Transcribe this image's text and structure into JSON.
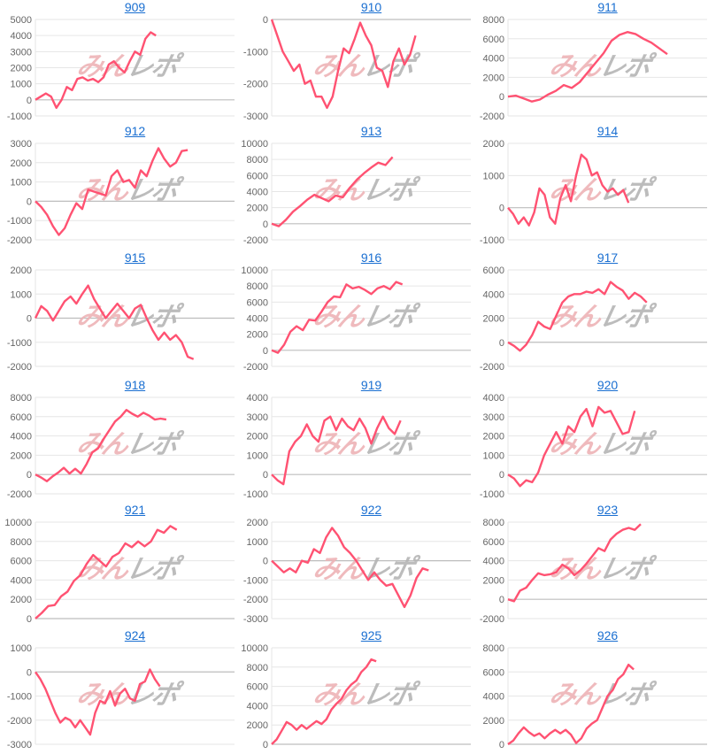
{
  "watermark": {
    "part1": "みん",
    "part2": "レポ"
  },
  "colors": {
    "line": "#ff5272",
    "grid": "#e6e6e6",
    "zero": "#bdbdbd",
    "tick_text": "#666666",
    "title": "#1a6fd1"
  },
  "chart_data": [
    {
      "type": "line",
      "title": "909",
      "ylim": [
        -1000,
        5000
      ],
      "ystep": 1000,
      "xlim": [
        0,
        38
      ],
      "grid": true,
      "values": [
        0,
        200,
        400,
        200,
        -500,
        0,
        800,
        600,
        1300,
        1400,
        1200,
        1300,
        1100,
        1400,
        2200,
        2400,
        2000,
        1700,
        2400,
        3000,
        2800,
        3800,
        4200,
        4000
      ]
    },
    {
      "type": "line",
      "title": "910",
      "ylim": [
        -3000,
        0
      ],
      "ystep": 1000,
      "xlim": [
        0,
        36
      ],
      "grid": true,
      "values": [
        0,
        -500,
        -1000,
        -1300,
        -1600,
        -1400,
        -2000,
        -1900,
        -2400,
        -2400,
        -2750,
        -2400,
        -1600,
        -900,
        -1050,
        -600,
        -100,
        -500,
        -800,
        -1500,
        -1600,
        -2100,
        -1300,
        -900,
        -1400,
        -1100,
        -500
      ]
    },
    {
      "type": "line",
      "title": "911",
      "ylim": [
        -2000,
        8000
      ],
      "ystep": 2000,
      "xlim": [
        0,
        25
      ],
      "grid": true,
      "values": [
        0,
        100,
        -200,
        -500,
        -300,
        200,
        600,
        1200,
        900,
        1500,
        2500,
        3500,
        4500,
        5800,
        6400,
        6700,
        6500,
        6000,
        5600,
        5000,
        4400
      ]
    },
    {
      "type": "line",
      "title": "912",
      "ylim": [
        -2000,
        3000
      ],
      "ystep": 1000,
      "xlim": [
        0,
        34
      ],
      "grid": true,
      "values": [
        0,
        -300,
        -700,
        -1300,
        -1750,
        -1400,
        -700,
        -100,
        -400,
        600,
        500,
        400,
        300,
        1300,
        1600,
        1000,
        1100,
        700,
        1600,
        1300,
        2100,
        2750,
        2200,
        1800,
        2000,
        2600,
        2650
      ]
    },
    {
      "type": "line",
      "title": "913",
      "ylim": [
        -2000,
        10000
      ],
      "ystep": 2000,
      "xlim": [
        0,
        28
      ],
      "grid": true,
      "values": [
        0,
        -300,
        500,
        1500,
        2200,
        3000,
        3600,
        3200,
        2800,
        3500,
        3300,
        4500,
        5500,
        6300,
        7000,
        7600,
        7300,
        8300
      ]
    },
    {
      "type": "line",
      "title": "914",
      "ylim": [
        -1000,
        2000
      ],
      "ystep": 1000,
      "xlim": [
        0,
        38
      ],
      "grid": true,
      "values": [
        0,
        -200,
        -500,
        -300,
        -550,
        -150,
        600,
        400,
        -300,
        -500,
        300,
        700,
        200,
        1000,
        1650,
        1500,
        1000,
        1100,
        700,
        500,
        600,
        400,
        550,
        150
      ]
    },
    {
      "type": "line",
      "title": "915",
      "ylim": [
        -2000,
        2000
      ],
      "ystep": 1000,
      "xlim": [
        0,
        34
      ],
      "grid": true,
      "values": [
        0,
        500,
        300,
        -100,
        300,
        700,
        900,
        600,
        1000,
        1350,
        800,
        400,
        0,
        300,
        600,
        300,
        0,
        400,
        550,
        0,
        -500,
        -900,
        -600,
        -900,
        -700,
        -1000,
        -1600,
        -1700
      ]
    },
    {
      "type": "line",
      "title": "916",
      "ylim": [
        -2000,
        10000
      ],
      "ystep": 2000,
      "xlim": [
        0,
        32
      ],
      "grid": true,
      "values": [
        0,
        -300,
        700,
        2300,
        3000,
        2500,
        3800,
        3700,
        4800,
        6000,
        6700,
        6600,
        8200,
        7700,
        7900,
        7500,
        7000,
        7700,
        8000,
        7600,
        8500,
        8200
      ]
    },
    {
      "type": "line",
      "title": "917",
      "ylim": [
        -2000,
        6000
      ],
      "ystep": 2000,
      "xlim": [
        0,
        33
      ],
      "grid": true,
      "values": [
        0,
        -300,
        -700,
        -200,
        600,
        1700,
        1300,
        1100,
        2200,
        3300,
        3800,
        4000,
        4000,
        4200,
        4100,
        4400,
        4000,
        5000,
        4600,
        4300,
        3600,
        4100,
        3800,
        3300
      ]
    },
    {
      "type": "line",
      "title": "918",
      "ylim": [
        -2000,
        8000
      ],
      "ystep": 2000,
      "xlim": [
        0,
        35
      ],
      "grid": true,
      "values": [
        0,
        -300,
        -700,
        -200,
        200,
        700,
        100,
        600,
        100,
        1100,
        2300,
        2700,
        3700,
        4600,
        5500,
        6000,
        6700,
        6300,
        6000,
        6400,
        6100,
        5700,
        5800,
        5700
      ]
    },
    {
      "type": "line",
      "title": "919",
      "ylim": [
        -1000,
        4000
      ],
      "ystep": 1000,
      "xlim": [
        0,
        34
      ],
      "grid": true,
      "values": [
        0,
        -300,
        -500,
        1200,
        1700,
        2000,
        2600,
        2000,
        1700,
        2800,
        3000,
        2300,
        2900,
        2500,
        2300,
        2900,
        2400,
        1600,
        2400,
        3000,
        2400,
        2100,
        2800
      ]
    },
    {
      "type": "line",
      "title": "920",
      "ylim": [
        -1000,
        4000
      ],
      "ystep": 1000,
      "xlim": [
        0,
        33
      ],
      "grid": true,
      "values": [
        0,
        -200,
        -600,
        -300,
        -400,
        100,
        1000,
        1600,
        2200,
        1600,
        2500,
        2200,
        3000,
        3400,
        2500,
        3500,
        3200,
        3300,
        2700,
        2100,
        2200,
        3300
      ]
    },
    {
      "type": "line",
      "title": "921",
      "ylim": [
        0,
        10000
      ],
      "ystep": 2000,
      "xlim": [
        0,
        31
      ],
      "grid": true,
      "values": [
        0,
        600,
        1300,
        1400,
        2300,
        2800,
        3900,
        4500,
        5700,
        6600,
        6000,
        5400,
        6400,
        6800,
        7800,
        7400,
        8000,
        7500,
        8000,
        9200,
        8900,
        9600,
        9200
      ]
    },
    {
      "type": "line",
      "title": "922",
      "ylim": [
        -3000,
        2000
      ],
      "ystep": 1000,
      "xlim": [
        0,
        33
      ],
      "grid": true,
      "values": [
        0,
        -300,
        -600,
        -400,
        -600,
        0,
        -100,
        600,
        400,
        1200,
        1700,
        1300,
        700,
        400,
        0,
        -500,
        -1000,
        -600,
        -1000,
        -1300,
        -1200,
        -1800,
        -2400,
        -1800,
        -900,
        -400,
        -500
      ]
    },
    {
      "type": "line",
      "title": "923",
      "ylim": [
        -2000,
        8000
      ],
      "ystep": 2000,
      "xlim": [
        0,
        33
      ],
      "grid": true,
      "values": [
        0,
        -200,
        900,
        1200,
        2000,
        2700,
        2500,
        2600,
        2800,
        3600,
        3200,
        2500,
        3000,
        3700,
        4500,
        5300,
        5000,
        6200,
        6800,
        7200,
        7400,
        7200,
        7800
      ]
    },
    {
      "type": "line",
      "title": "924",
      "ylim": [
        -3000,
        1000
      ],
      "ystep": 1000,
      "xlim": [
        0,
        40
      ],
      "grid": true,
      "values": [
        0,
        -300,
        -700,
        -1200,
        -1700,
        -2100,
        -1900,
        -2000,
        -2300,
        -2000,
        -2300,
        -2600,
        -1700,
        -1200,
        -1300,
        -800,
        -1400,
        -900,
        -700,
        -1100,
        -1200,
        -500,
        -400,
        100,
        -300,
        -600
      ]
    },
    {
      "type": "line",
      "title": "925",
      "ylim": [
        0,
        10000
      ],
      "ystep": 2000,
      "xlim": [
        0,
        40
      ],
      "grid": true,
      "values": [
        0,
        500,
        1400,
        2300,
        2000,
        1500,
        2000,
        1600,
        2000,
        2400,
        2100,
        2600,
        3600,
        4200,
        4700,
        5600,
        6200,
        6600,
        7500,
        8000,
        8800,
        8600
      ]
    },
    {
      "type": "line",
      "title": "926",
      "ylim": [
        0,
        8000
      ],
      "ystep": 2000,
      "xlim": [
        0,
        38
      ],
      "grid": true,
      "values": [
        0,
        300,
        900,
        1400,
        1000,
        700,
        900,
        500,
        900,
        1200,
        900,
        1200,
        800,
        100,
        500,
        1300,
        1700,
        2000,
        3000,
        4000,
        4500,
        5400,
        5800,
        6600,
        6200
      ]
    }
  ]
}
